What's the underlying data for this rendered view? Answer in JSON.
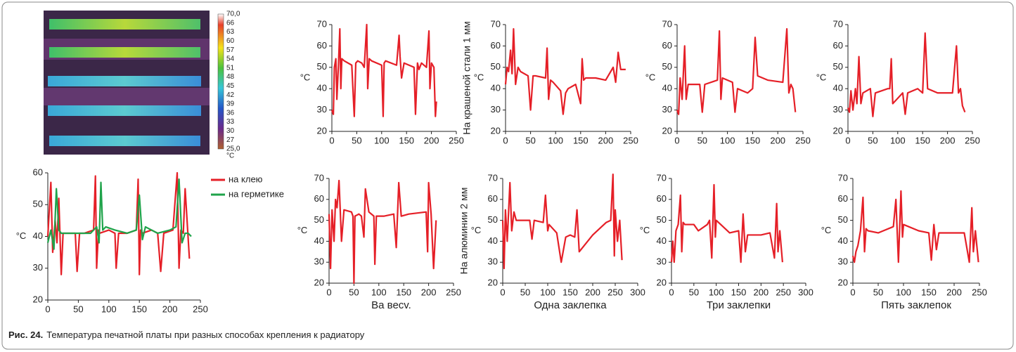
{
  "thermal_scale": {
    "labels": [
      "70,0",
      "66",
      "63",
      "60",
      "57",
      "54",
      "51",
      "48",
      "45",
      "42",
      "39",
      "36",
      "33",
      "30",
      "27",
      "25,0"
    ],
    "unit": "°C"
  },
  "chart_data": [
    {
      "type": "line",
      "ylabel": "°C",
      "xlim": [
        0,
        250
      ],
      "xticks": [
        0,
        50,
        100,
        150,
        200,
        250
      ],
      "ylim": [
        20,
        60
      ],
      "yticks": [
        20,
        30,
        40,
        50,
        60
      ],
      "legend": "right",
      "series": [
        {
          "name": "на клею",
          "color": "#e51f27",
          "x": [
            0,
            5,
            8,
            12,
            15,
            18,
            22,
            25,
            30,
            45,
            48,
            52,
            60,
            75,
            78,
            80,
            83,
            85,
            100,
            110,
            112,
            116,
            130,
            145,
            148,
            150,
            152,
            155,
            170,
            180,
            185,
            190,
            205,
            212,
            215,
            218,
            222,
            225,
            232
          ],
          "values": [
            40,
            57,
            35,
            45,
            38,
            52,
            28,
            41,
            41,
            41,
            29,
            41,
            41,
            42,
            59,
            30,
            42,
            41,
            42,
            41,
            30,
            41,
            41,
            42,
            58,
            28,
            42,
            41,
            42,
            41,
            29,
            41,
            42,
            60,
            30,
            42,
            41,
            55,
            33
          ]
        },
        {
          "name": "на герметике",
          "color": "#1fa34a",
          "x": [
            0,
            5,
            10,
            14,
            18,
            22,
            30,
            50,
            70,
            80,
            84,
            87,
            90,
            95,
            110,
            130,
            145,
            150,
            155,
            160,
            180,
            200,
            210,
            215,
            220,
            225,
            230,
            235
          ],
          "values": [
            38,
            42,
            36,
            55,
            42,
            41,
            41,
            41,
            41,
            43,
            38,
            57,
            42,
            43,
            42,
            41,
            42,
            53,
            39,
            43,
            41,
            42,
            43,
            58,
            38,
            41,
            41,
            40
          ]
        }
      ]
    },
    {
      "type": "line",
      "ylabel": "°C",
      "xlim": [
        0,
        250
      ],
      "xticks": [
        0,
        50,
        100,
        150,
        200,
        250
      ],
      "ylim": [
        20,
        70
      ],
      "yticks": [
        20,
        30,
        40,
        50,
        60,
        70
      ],
      "series": [
        {
          "color": "#e51f27",
          "x": [
            0,
            3,
            5,
            8,
            10,
            13,
            16,
            18,
            20,
            25,
            40,
            45,
            48,
            52,
            60,
            65,
            70,
            72,
            75,
            80,
            100,
            103,
            105,
            108,
            130,
            135,
            137,
            140,
            145,
            165,
            168,
            172,
            175,
            180,
            190,
            195,
            197,
            200,
            205,
            208,
            210
          ],
          "values": [
            30,
            28,
            50,
            54,
            35,
            50,
            68,
            40,
            54,
            53,
            51,
            27,
            52,
            53,
            52,
            50,
            70,
            40,
            54,
            53,
            51,
            27,
            52,
            53,
            51,
            65,
            55,
            45,
            52,
            50,
            28,
            52,
            49,
            52,
            50,
            67,
            40,
            52,
            50,
            27,
            34
          ]
        }
      ]
    },
    {
      "type": "line",
      "ylabel": "°C",
      "side_label": "На крашеной стали 1 мм",
      "xlim": [
        0,
        250
      ],
      "xticks": [
        0,
        50,
        100,
        150,
        200,
        250
      ],
      "ylim": [
        20,
        70
      ],
      "yticks": [
        20,
        30,
        40,
        50,
        60,
        70
      ],
      "series": [
        {
          "color": "#e51f27",
          "x": [
            0,
            3,
            6,
            10,
            13,
            16,
            20,
            25,
            30,
            45,
            50,
            55,
            60,
            80,
            83,
            86,
            90,
            95,
            110,
            115,
            120,
            125,
            140,
            150,
            153,
            156,
            160,
            180,
            200,
            215,
            220,
            225,
            230,
            240
          ],
          "values": [
            42,
            50,
            48,
            58,
            47,
            68,
            42,
            50,
            48,
            46,
            30,
            46,
            46,
            45,
            59,
            35,
            44,
            43,
            39,
            28,
            38,
            40,
            42,
            33,
            54,
            44,
            45,
            45,
            44,
            50,
            43,
            57,
            49,
            49
          ]
        }
      ]
    },
    {
      "type": "line",
      "ylabel": "°C",
      "xlim": [
        0,
        250
      ],
      "xticks": [
        0,
        50,
        100,
        150,
        200,
        250
      ],
      "ylim": [
        20,
        70
      ],
      "yticks": [
        20,
        30,
        40,
        50,
        60,
        70
      ],
      "series": [
        {
          "color": "#e51f27",
          "x": [
            0,
            3,
            6,
            10,
            15,
            18,
            22,
            26,
            30,
            45,
            50,
            55,
            80,
            84,
            87,
            90,
            110,
            115,
            120,
            140,
            150,
            155,
            160,
            180,
            210,
            218,
            222,
            226,
            230,
            235
          ],
          "values": [
            30,
            28,
            45,
            35,
            60,
            35,
            42,
            42,
            42,
            42,
            29,
            42,
            44,
            67,
            35,
            45,
            43,
            29,
            40,
            38,
            40,
            64,
            46,
            44,
            43,
            68,
            38,
            42,
            40,
            29
          ]
        }
      ]
    },
    {
      "type": "line",
      "ylabel": "°C",
      "xlim": [
        0,
        250
      ],
      "xticks": [
        0,
        50,
        100,
        150,
        200,
        250
      ],
      "ylim": [
        20,
        70
      ],
      "yticks": [
        20,
        30,
        40,
        50,
        60,
        70
      ],
      "series": [
        {
          "color": "#e51f27",
          "x": [
            0,
            3,
            6,
            10,
            15,
            18,
            22,
            26,
            30,
            45,
            50,
            55,
            80,
            84,
            87,
            90,
            110,
            115,
            120,
            140,
            150,
            155,
            160,
            180,
            210,
            218,
            222,
            226,
            230,
            235
          ],
          "values": [
            31,
            29,
            39,
            30,
            40,
            33,
            55,
            33,
            38,
            40,
            27,
            38,
            40,
            40,
            54,
            33,
            38,
            28,
            38,
            40,
            38,
            66,
            40,
            38,
            38,
            60,
            38,
            40,
            32,
            29
          ]
        }
      ]
    },
    {
      "type": "line",
      "ylabel": "°C",
      "xlabel": "Ва весv.",
      "xlim": [
        0,
        250
      ],
      "xticks": [
        0,
        50,
        100,
        150,
        200,
        250
      ],
      "ylim": [
        20,
        70
      ],
      "yticks": [
        20,
        30,
        40,
        50,
        60,
        70
      ],
      "series": [
        {
          "color": "#e51f27",
          "x": [
            0,
            3,
            6,
            10,
            13,
            16,
            20,
            25,
            30,
            45,
            48,
            50,
            52,
            60,
            65,
            70,
            73,
            80,
            90,
            92,
            95,
            110,
            130,
            135,
            140,
            145,
            160,
            195,
            198,
            200,
            205,
            210,
            215
          ],
          "values": [
            53,
            27,
            55,
            40,
            60,
            56,
            69,
            40,
            55,
            54,
            52,
            20,
            52,
            53,
            52,
            42,
            65,
            54,
            52,
            29,
            52,
            52,
            53,
            37,
            68,
            52,
            53,
            54,
            35,
            68,
            53,
            27,
            50
          ]
        }
      ]
    },
    {
      "type": "line",
      "ylabel": "°C",
      "side_label": "На алюминии 2 мм",
      "xlabel": "Одна заклепка",
      "xlim": [
        0,
        300
      ],
      "xticks": [
        0,
        50,
        100,
        150,
        200,
        250,
        300
      ],
      "ylim": [
        20,
        70
      ],
      "yticks": [
        20,
        30,
        40,
        50,
        60,
        70
      ],
      "series": [
        {
          "color": "#e51f27",
          "x": [
            0,
            3,
            6,
            10,
            13,
            16,
            20,
            25,
            30,
            60,
            65,
            70,
            90,
            95,
            100,
            103,
            120,
            130,
            140,
            150,
            160,
            165,
            170,
            200,
            230,
            240,
            245,
            248,
            250,
            255,
            260,
            265
          ],
          "values": [
            50,
            27,
            55,
            40,
            54,
            68,
            45,
            54,
            50,
            50,
            41,
            50,
            49,
            62,
            45,
            48,
            44,
            30,
            42,
            43,
            42,
            55,
            35,
            43,
            49,
            50,
            72,
            33,
            55,
            40,
            50,
            31
          ]
        }
      ]
    },
    {
      "type": "line",
      "ylabel": "°C",
      "xlabel": "Три заклепки",
      "xlim": [
        0,
        300
      ],
      "xticks": [
        0,
        50,
        100,
        150,
        200,
        250,
        300
      ],
      "ylim": [
        20,
        70
      ],
      "yticks": [
        20,
        30,
        40,
        50,
        60,
        70
      ],
      "series": [
        {
          "color": "#e51f27",
          "x": [
            0,
            3,
            6,
            10,
            15,
            20,
            23,
            26,
            30,
            50,
            60,
            80,
            85,
            90,
            95,
            98,
            100,
            130,
            150,
            155,
            160,
            165,
            170,
            200,
            220,
            230,
            235,
            238,
            242,
            248
          ],
          "values": [
            30,
            40,
            30,
            45,
            48,
            62,
            35,
            49,
            48,
            48,
            45,
            48,
            50,
            32,
            67,
            42,
            50,
            44,
            45,
            30,
            53,
            35,
            43,
            43,
            44,
            32,
            58,
            35,
            45,
            30
          ]
        }
      ]
    },
    {
      "type": "line",
      "ylabel": "°C",
      "xlabel": "Пять заклепок",
      "xlim": [
        0,
        250
      ],
      "xticks": [
        0,
        50,
        100,
        150,
        200,
        250
      ],
      "ylim": [
        20,
        70
      ],
      "yticks": [
        20,
        30,
        40,
        50,
        60,
        70
      ],
      "series": [
        {
          "color": "#e51f27",
          "x": [
            0,
            3,
            6,
            10,
            15,
            20,
            23,
            26,
            30,
            50,
            60,
            80,
            85,
            90,
            95,
            98,
            100,
            130,
            150,
            155,
            160,
            165,
            170,
            200,
            220,
            230,
            235,
            238,
            242,
            248
          ],
          "values": [
            33,
            30,
            35,
            38,
            45,
            61,
            35,
            46,
            45,
            44,
            45,
            47,
            60,
            30,
            64,
            42,
            48,
            45,
            44,
            31,
            48,
            36,
            44,
            44,
            44,
            30,
            56,
            35,
            45,
            30
          ]
        }
      ]
    }
  ],
  "caption": {
    "label": "Рис. 24.",
    "text": "Температура печатной платы при разных способах крепления к радиатору"
  }
}
